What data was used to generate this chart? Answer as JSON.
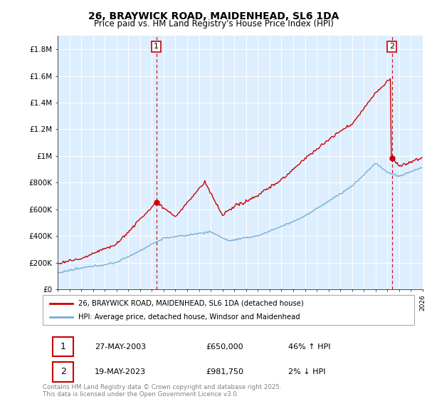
{
  "title": "26, BRAYWICK ROAD, MAIDENHEAD, SL6 1DA",
  "subtitle": "Price paid vs. HM Land Registry's House Price Index (HPI)",
  "legend_line1": "26, BRAYWICK ROAD, MAIDENHEAD, SL6 1DA (detached house)",
  "legend_line2": "HPI: Average price, detached house, Windsor and Maidenhead",
  "annotation1_date": "27-MAY-2003",
  "annotation1_price": "£650,000",
  "annotation1_hpi": "46% ↑ HPI",
  "annotation2_date": "19-MAY-2023",
  "annotation2_price": "£981,750",
  "annotation2_hpi": "2% ↓ HPI",
  "footer": "Contains HM Land Registry data © Crown copyright and database right 2025.\nThis data is licensed under the Open Government Licence v3.0.",
  "red_color": "#cc0000",
  "blue_color": "#7aadd4",
  "bg_color": "#ddeeff",
  "ylim": [
    0,
    1900000
  ],
  "yticks": [
    0,
    200000,
    400000,
    600000,
    800000,
    1000000,
    1200000,
    1400000,
    1600000,
    1800000
  ],
  "x_start_year": 1995,
  "x_end_year": 2026,
  "sale1_year": 2003.375,
  "sale1_price": 650000,
  "sale2_year": 2023.375,
  "sale2_price": 981750
}
